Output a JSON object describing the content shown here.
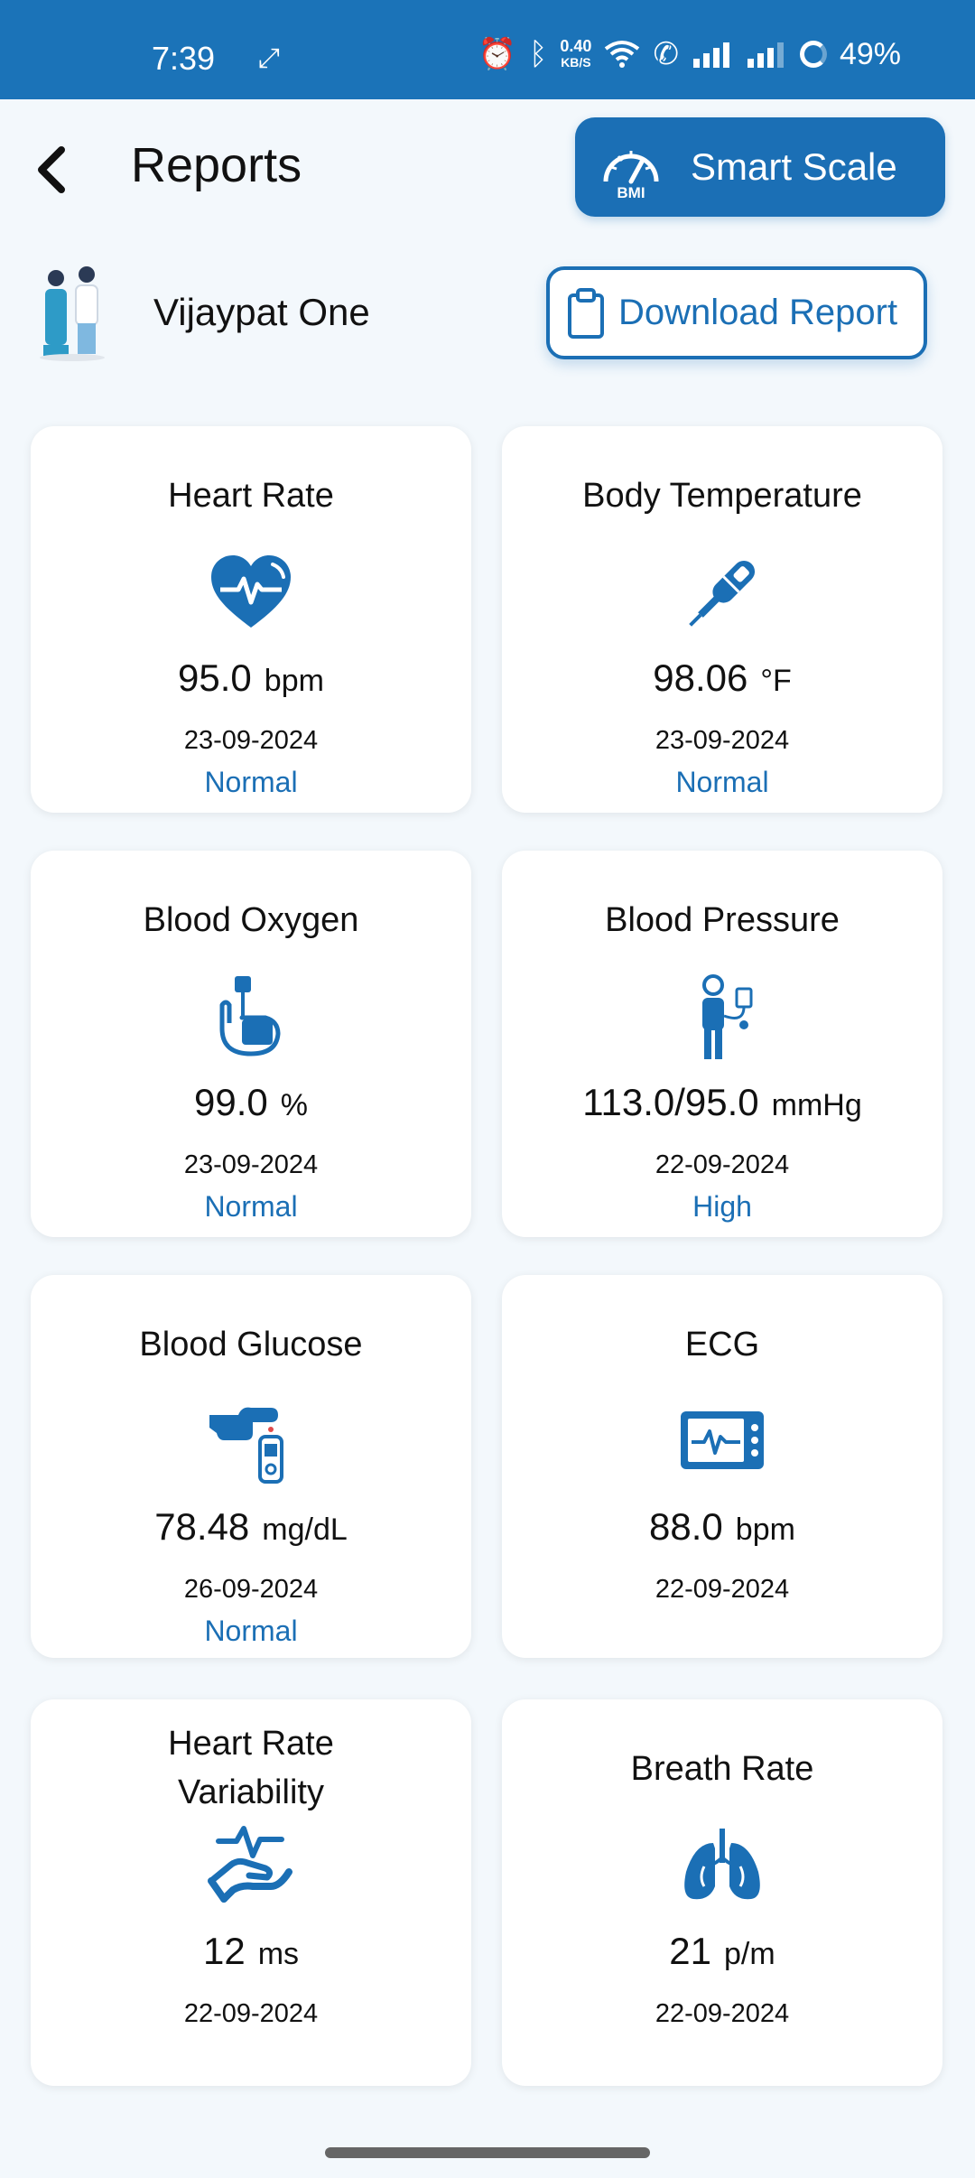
{
  "status_bar": {
    "time": "7:39",
    "speed_value": "0.40",
    "speed_unit": "KB/S",
    "battery": "49%"
  },
  "header": {
    "title": "Reports",
    "smart_scale_label": "Smart Scale",
    "bmi_icon_text": "BMI"
  },
  "user": {
    "name": "Vijaypat One",
    "download_label": "Download Report"
  },
  "colors": {
    "primary": "#1B6FB5",
    "status_bar": "#1B73B8",
    "background": "#F3F8FC"
  },
  "cards": [
    {
      "title": "Heart Rate",
      "icon": "heart-pulse-icon",
      "value": "95.0",
      "unit": "bpm",
      "date": "23-09-2024",
      "status": "Normal"
    },
    {
      "title": "Body Temperature",
      "icon": "thermometer-icon",
      "value": "98.06",
      "unit": "°F",
      "date": "23-09-2024",
      "status": "Normal"
    },
    {
      "title": "Blood Oxygen",
      "icon": "pulse-oximeter-icon",
      "value": "99.0",
      "unit": "%",
      "date": "23-09-2024",
      "status": "Normal"
    },
    {
      "title": "Blood Pressure",
      "icon": "person-bp-monitor-icon",
      "value": "113.0/95.0",
      "unit": "mmHg",
      "date": "22-09-2024",
      "status": "High"
    },
    {
      "title": "Blood Glucose",
      "icon": "glucometer-icon",
      "value": "78.48",
      "unit": "mg/dL",
      "date": "26-09-2024",
      "status": "Normal"
    },
    {
      "title": "ECG",
      "icon": "ecg-monitor-icon",
      "value": "88.0",
      "unit": "bpm",
      "date": "22-09-2024",
      "status": ""
    },
    {
      "title_line1": "Heart Rate",
      "title_line2": "Variability",
      "icon": "hand-pulse-icon",
      "value": "12",
      "unit": "ms",
      "date": "22-09-2024",
      "status": ""
    },
    {
      "title": "Breath Rate",
      "icon": "lungs-icon",
      "value": "21",
      "unit": "p/m",
      "date": "22-09-2024",
      "status": ""
    }
  ]
}
